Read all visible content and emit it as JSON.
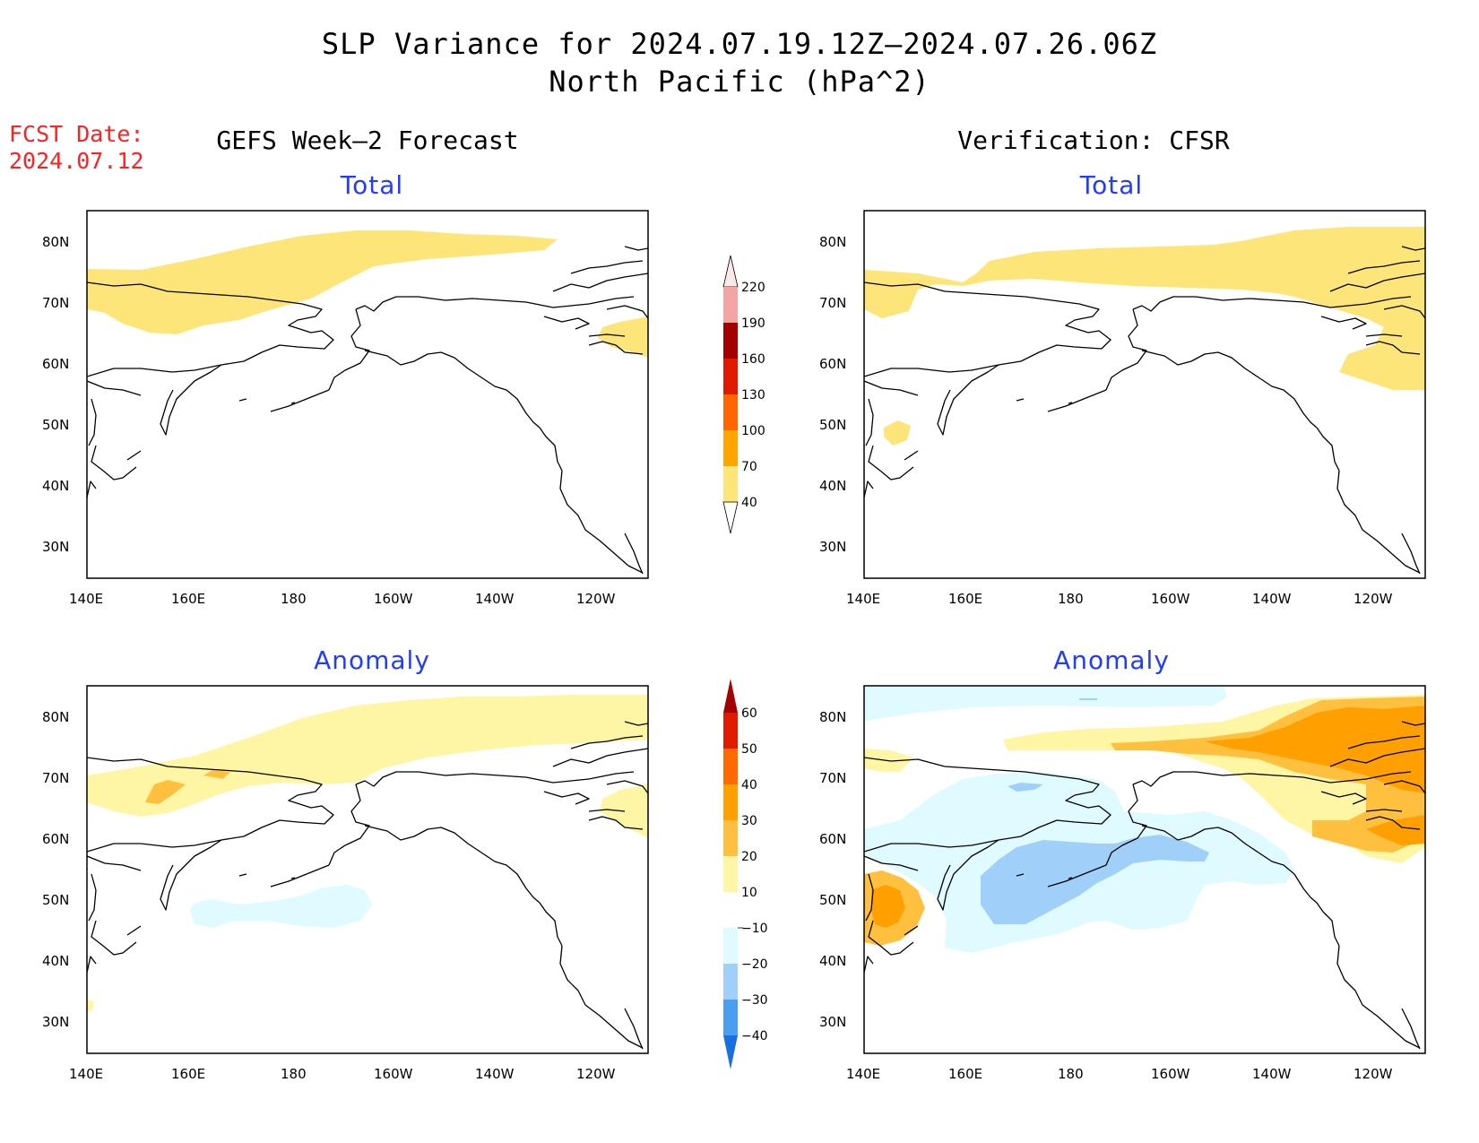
{
  "title": {
    "line1": "SLP Variance for 2024.07.19.12Z–2024.07.26.06Z",
    "line2": "North Pacific (hPa^2)"
  },
  "fcst": {
    "label": "FCST Date:",
    "date": "2024.07.12"
  },
  "columns": {
    "left": "GEFS Week–2 Forecast",
    "right": "Verification: CFSR"
  },
  "panel_titles": {
    "total": "Total",
    "anomaly": "Anomaly"
  },
  "axes": {
    "lon_labels": [
      "140E",
      "160E",
      "180",
      "160W",
      "140W",
      "120W"
    ],
    "lat_labels": [
      "80N",
      "70N",
      "60N",
      "50N",
      "40N",
      "30N"
    ]
  },
  "colorbars": {
    "total": {
      "labels": [
        "220",
        "190",
        "160",
        "130",
        "100",
        "70",
        "40"
      ],
      "colors": [
        "#fbe8e8",
        "#f4a4a4",
        "#a50000",
        "#e01a00",
        "#ff6600",
        "#ffa500",
        "#fde57a"
      ]
    },
    "anomaly": {
      "labels": [
        "60",
        "50",
        "40",
        "30",
        "20",
        "10",
        "−10",
        "−20",
        "−30",
        "−40"
      ],
      "colors": [
        "#a50000",
        "#e01a00",
        "#ff6a00",
        "#ff9f00",
        "#ffc040",
        "#fff6a5",
        "#ffffff",
        "#e0fbff",
        "#a0d0fa",
        "#4a9ef0",
        "#1a6fe0"
      ]
    }
  },
  "legend_colors": {
    "total_40": "#fde57a",
    "anom_10": "#fff6a5",
    "anom_20": "#ffc040",
    "anom_30": "#ff9f00",
    "anom_neg10": "#e0fbff",
    "anom_neg20": "#a0d0fa"
  }
}
